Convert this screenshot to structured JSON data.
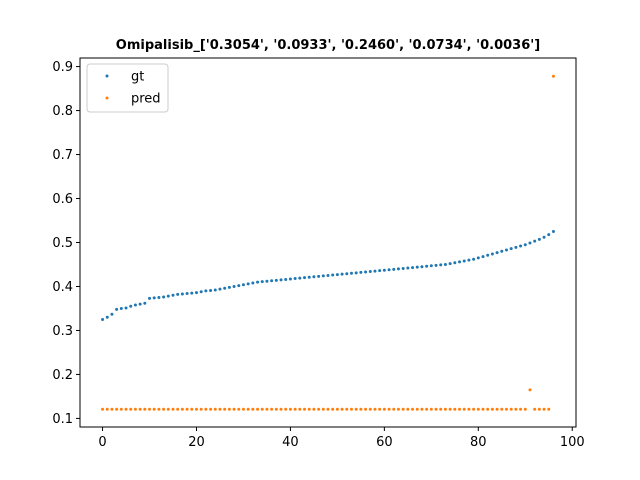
{
  "chart_data": {
    "type": "scatter",
    "title": "Omipalisib_['0.3054', '0.0933', '0.2460', '0.0734', '0.0036']",
    "xlabel": "",
    "ylabel": "",
    "xlim": [
      -4.8,
      100.8
    ],
    "ylim": [
      0.0805,
      0.9195
    ],
    "xticks": [
      0,
      20,
      40,
      60,
      80,
      100
    ],
    "yticks": [
      0.1,
      0.2,
      0.3,
      0.4,
      0.5,
      0.6,
      0.7,
      0.8,
      0.9
    ],
    "xtick_labels": [
      "0",
      "20",
      "40",
      "60",
      "80",
      "100"
    ],
    "ytick_labels": [
      "0.1",
      "0.2",
      "0.3",
      "0.4",
      "0.5",
      "0.6",
      "0.7",
      "0.8",
      "0.9"
    ],
    "grid": false,
    "legend_position": "top-left",
    "series": [
      {
        "name": "gt",
        "color": "#1f77b4",
        "y": [
          0.325,
          0.33,
          0.337,
          0.348,
          0.35,
          0.351,
          0.355,
          0.358,
          0.36,
          0.362,
          0.373,
          0.374,
          0.375,
          0.376,
          0.378,
          0.38,
          0.382,
          0.383,
          0.384,
          0.385,
          0.386,
          0.388,
          0.39,
          0.391,
          0.392,
          0.394,
          0.396,
          0.398,
          0.4,
          0.402,
          0.404,
          0.406,
          0.408,
          0.41,
          0.411,
          0.412,
          0.413,
          0.414,
          0.415,
          0.416,
          0.417,
          0.418,
          0.419,
          0.42,
          0.421,
          0.422,
          0.423,
          0.424,
          0.425,
          0.426,
          0.427,
          0.428,
          0.429,
          0.43,
          0.431,
          0.432,
          0.433,
          0.434,
          0.435,
          0.436,
          0.437,
          0.438,
          0.439,
          0.44,
          0.441,
          0.442,
          0.443,
          0.444,
          0.445,
          0.446,
          0.447,
          0.448,
          0.449,
          0.45,
          0.452,
          0.454,
          0.456,
          0.458,
          0.46,
          0.462,
          0.465,
          0.468,
          0.471,
          0.474,
          0.477,
          0.48,
          0.483,
          0.486,
          0.489,
          0.492,
          0.495,
          0.499,
          0.503,
          0.507,
          0.512,
          0.518,
          0.525
        ]
      },
      {
        "name": "pred",
        "color": "#ff7f0e",
        "y": [
          0.121,
          0.121,
          0.121,
          0.121,
          0.121,
          0.121,
          0.121,
          0.121,
          0.121,
          0.121,
          0.121,
          0.121,
          0.121,
          0.121,
          0.121,
          0.121,
          0.121,
          0.121,
          0.121,
          0.121,
          0.121,
          0.121,
          0.121,
          0.121,
          0.121,
          0.121,
          0.121,
          0.121,
          0.121,
          0.121,
          0.121,
          0.121,
          0.121,
          0.121,
          0.121,
          0.121,
          0.121,
          0.121,
          0.121,
          0.121,
          0.121,
          0.121,
          0.121,
          0.121,
          0.121,
          0.121,
          0.121,
          0.121,
          0.121,
          0.121,
          0.121,
          0.121,
          0.121,
          0.121,
          0.121,
          0.121,
          0.121,
          0.121,
          0.121,
          0.121,
          0.121,
          0.121,
          0.121,
          0.121,
          0.121,
          0.121,
          0.121,
          0.121,
          0.121,
          0.121,
          0.121,
          0.121,
          0.121,
          0.121,
          0.121,
          0.121,
          0.121,
          0.121,
          0.121,
          0.121,
          0.121,
          0.121,
          0.121,
          0.121,
          0.121,
          0.121,
          0.121,
          0.121,
          0.121,
          0.121,
          0.121,
          0.165,
          0.121,
          0.121,
          0.121,
          0.121,
          0.878
        ]
      }
    ]
  }
}
